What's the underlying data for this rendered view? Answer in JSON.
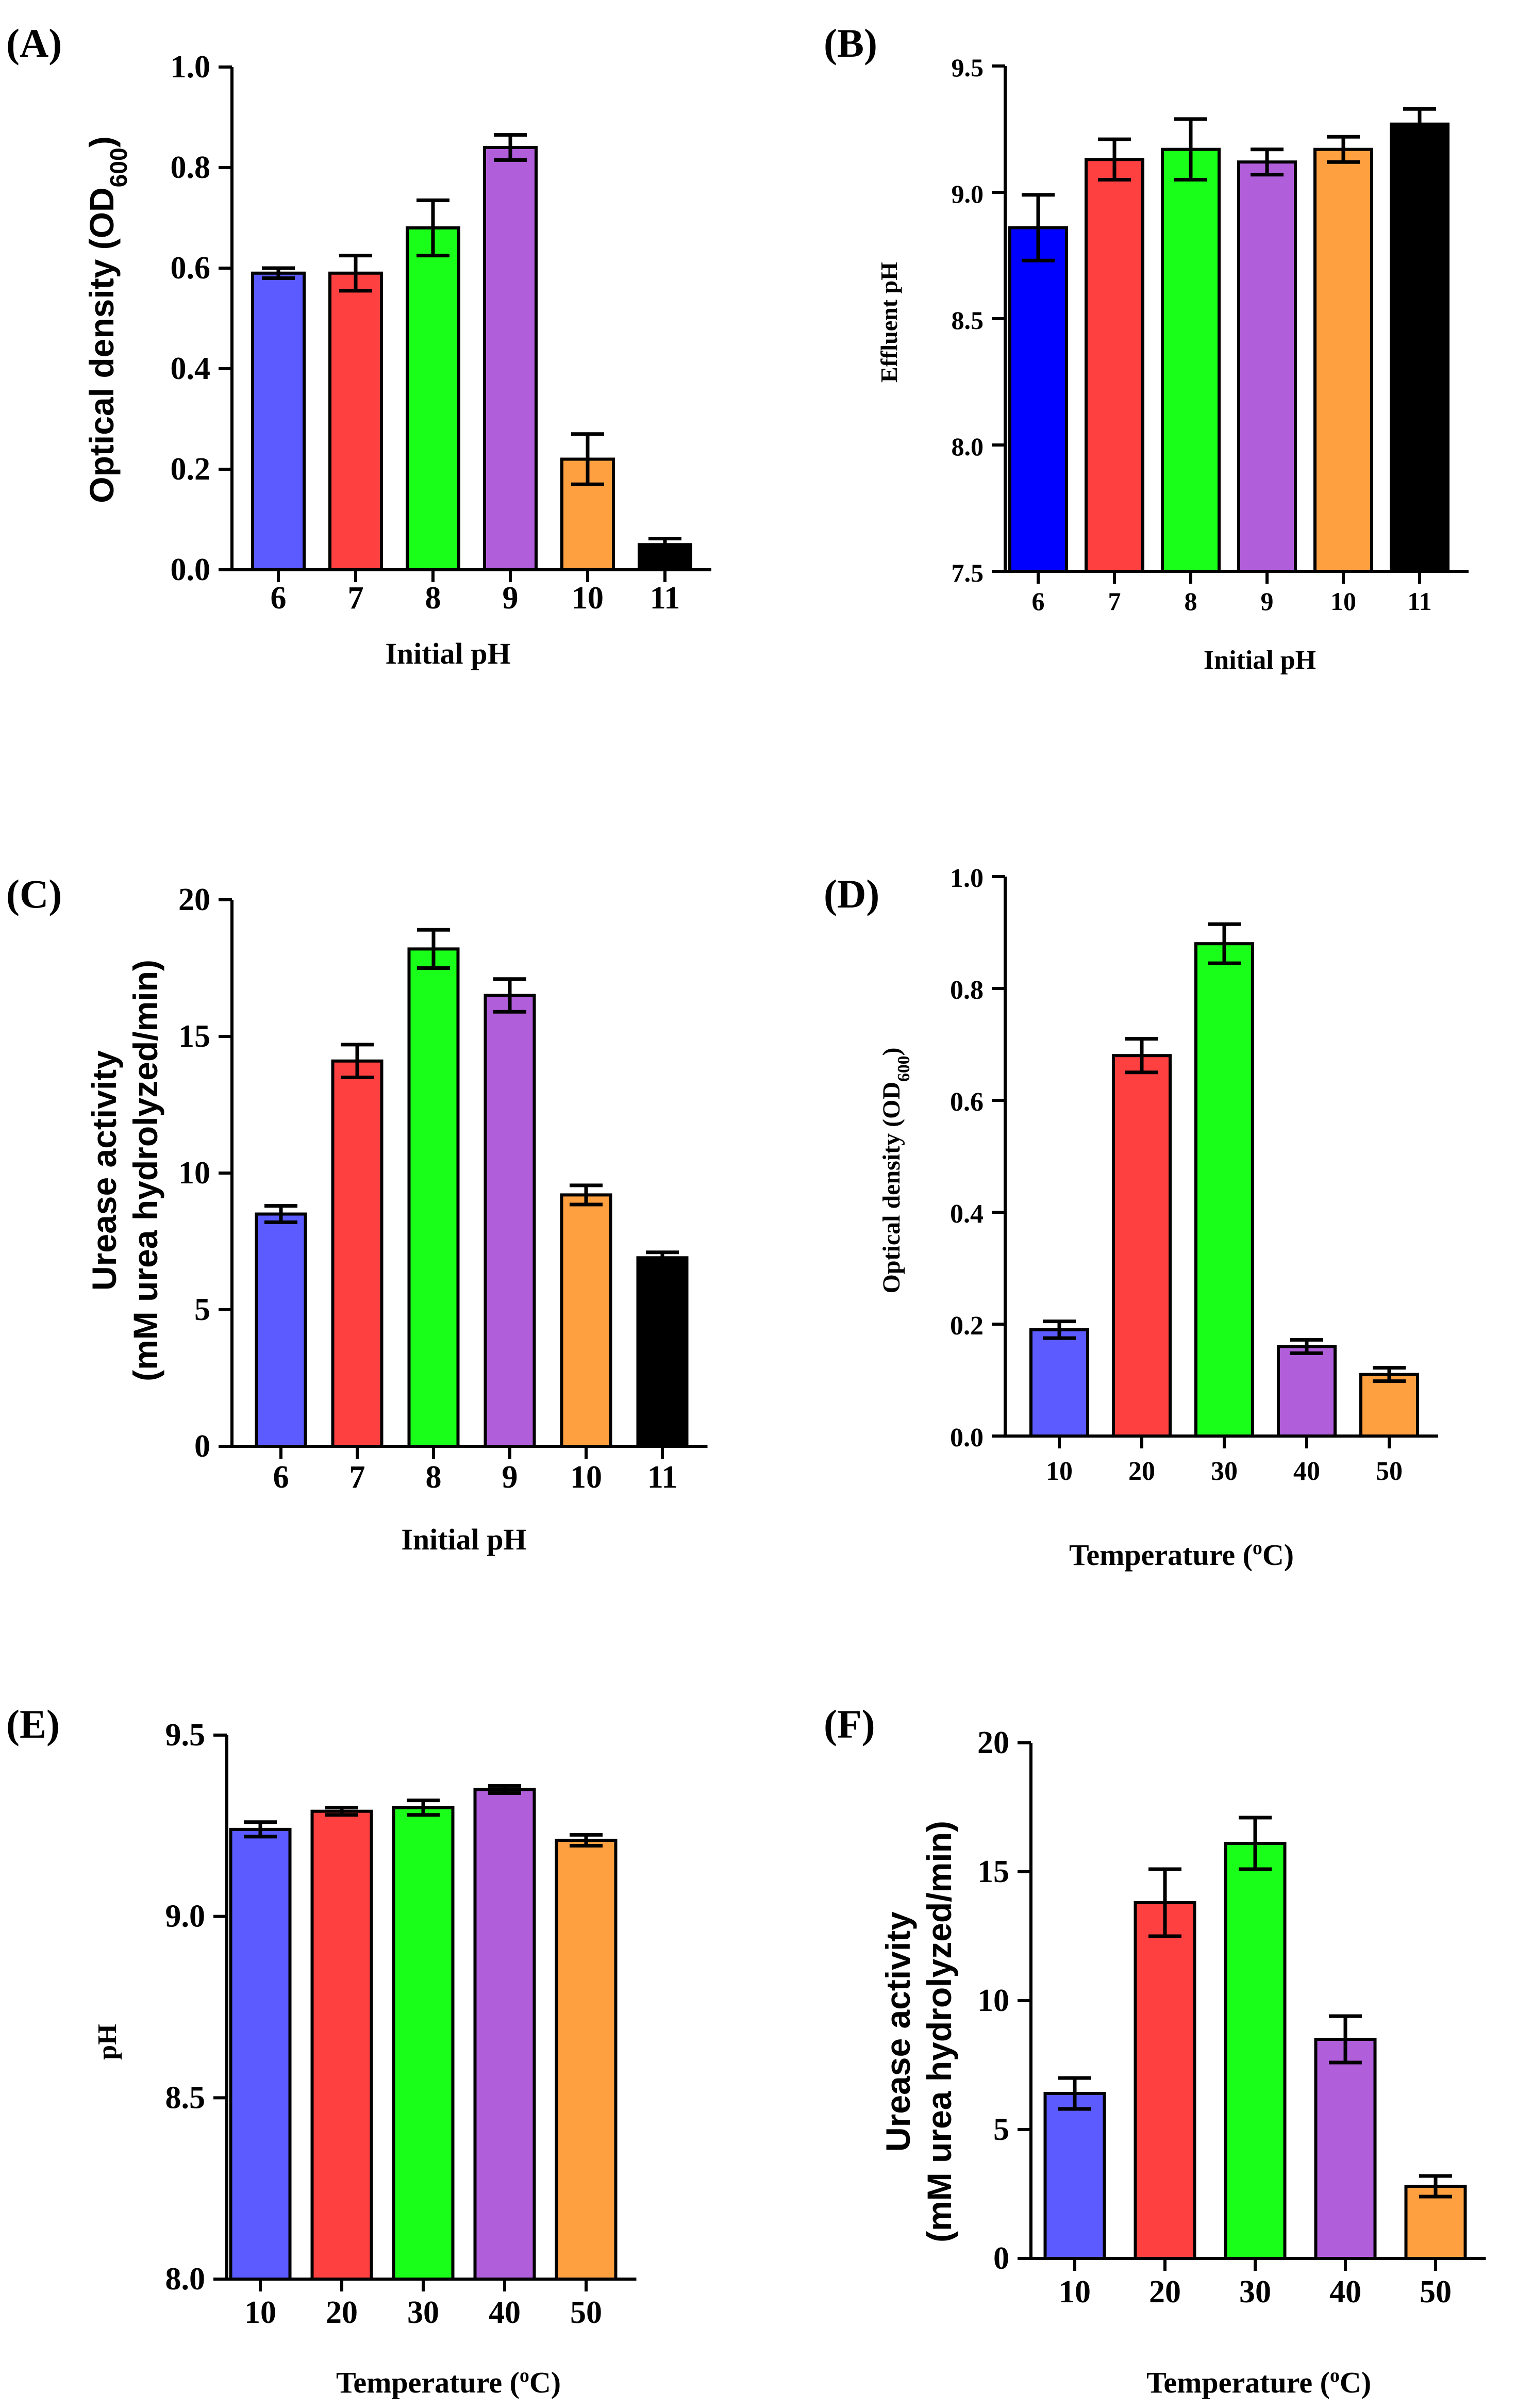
{
  "chart_data": [
    {
      "panel": "(A)",
      "type": "bar",
      "categories": [
        "6",
        "7",
        "8",
        "9",
        "10",
        "11"
      ],
      "values": [
        0.59,
        0.59,
        0.68,
        0.84,
        0.22,
        0.05
      ],
      "errors": [
        0.01,
        0.035,
        0.055,
        0.025,
        0.05,
        0.012
      ],
      "colors": [
        "#5b5bff",
        "#ff4040",
        "#1aff1a",
        "#b15edb",
        "#ffa040",
        "#000000"
      ],
      "ylabel": "Optical density (OD600)",
      "xlabel": "Initial pH",
      "ylim": [
        0,
        1.0
      ],
      "yticks": [
        "0.0",
        "0.2",
        "0.4",
        "0.6",
        "0.8",
        "1.0"
      ]
    },
    {
      "panel": "(B)",
      "type": "bar",
      "categories": [
        "6",
        "7",
        "8",
        "9",
        "10",
        "11"
      ],
      "values": [
        8.86,
        9.13,
        9.17,
        9.12,
        9.17,
        9.27
      ],
      "errors": [
        0.13,
        0.08,
        0.12,
        0.05,
        0.05,
        0.06
      ],
      "colors": [
        "#0000ff",
        "#ff4040",
        "#1aff1a",
        "#b15edb",
        "#ffa040",
        "#000000"
      ],
      "ylabel": "Effluent pH",
      "xlabel": "Initial pH",
      "ylim": [
        7.5,
        9.5
      ],
      "yticks": [
        "7.5",
        "8.0",
        "8.5",
        "9.0",
        "9.5"
      ]
    },
    {
      "panel": "(C)",
      "type": "bar",
      "categories": [
        "6",
        "7",
        "8",
        "9",
        "10",
        "11"
      ],
      "values": [
        8.5,
        14.1,
        18.2,
        16.5,
        9.2,
        6.9
      ],
      "errors": [
        0.3,
        0.6,
        0.7,
        0.6,
        0.35,
        0.2
      ],
      "colors": [
        "#5b5bff",
        "#ff4040",
        "#1aff1a",
        "#b15edb",
        "#ffa040",
        "#000000"
      ],
      "ylabel_line1": "Urease activity",
      "ylabel_line2": "(mM urea hydrolyzed/min)",
      "xlabel": "Initial pH",
      "ylim": [
        0,
        20
      ],
      "yticks": [
        "0",
        "5",
        "10",
        "15",
        "20"
      ]
    },
    {
      "panel": "(D)",
      "type": "bar",
      "categories": [
        "10",
        "20",
        "30",
        "40",
        "50"
      ],
      "values": [
        0.19,
        0.68,
        0.88,
        0.16,
        0.11
      ],
      "errors": [
        0.015,
        0.03,
        0.035,
        0.012,
        0.012
      ],
      "colors": [
        "#5b5bff",
        "#ff4040",
        "#1aff1a",
        "#b15edb",
        "#ffa040"
      ],
      "ylabel": "Optical density (OD600)",
      "xlabel": "Temperature (oC)",
      "ylim": [
        0,
        1.0
      ],
      "yticks": [
        "0.0",
        "0.2",
        "0.4",
        "0.6",
        "0.8",
        "1.0"
      ]
    },
    {
      "panel": "(E)",
      "type": "bar",
      "categories": [
        "10",
        "20",
        "30",
        "40",
        "50"
      ],
      "values": [
        9.24,
        9.29,
        9.3,
        9.35,
        9.21
      ],
      "errors": [
        0.02,
        0.01,
        0.02,
        0.01,
        0.015
      ],
      "colors": [
        "#5b5bff",
        "#ff4040",
        "#1aff1a",
        "#b15edb",
        "#ffa040"
      ],
      "ylabel": "pH",
      "xlabel": "Temperature (oC)",
      "ylim": [
        8.0,
        9.5
      ],
      "yticks": [
        "8.0",
        "8.5",
        "9.0",
        "9.5"
      ]
    },
    {
      "panel": "(F)",
      "type": "bar",
      "categories": [
        "10",
        "20",
        "30",
        "40",
        "50"
      ],
      "values": [
        6.4,
        13.8,
        16.1,
        8.5,
        2.8
      ],
      "errors": [
        0.6,
        1.3,
        1.0,
        0.9,
        0.4
      ],
      "colors": [
        "#5b5bff",
        "#ff4040",
        "#1aff1a",
        "#b15edb",
        "#ffa040"
      ],
      "ylabel_line1": "Urease activity",
      "ylabel_line2": "(mM urea hydrolyzed/min)",
      "xlabel": "Temperature (oC)",
      "ylim": [
        0,
        20
      ],
      "yticks": [
        "0",
        "5",
        "10",
        "15",
        "20"
      ]
    }
  ]
}
